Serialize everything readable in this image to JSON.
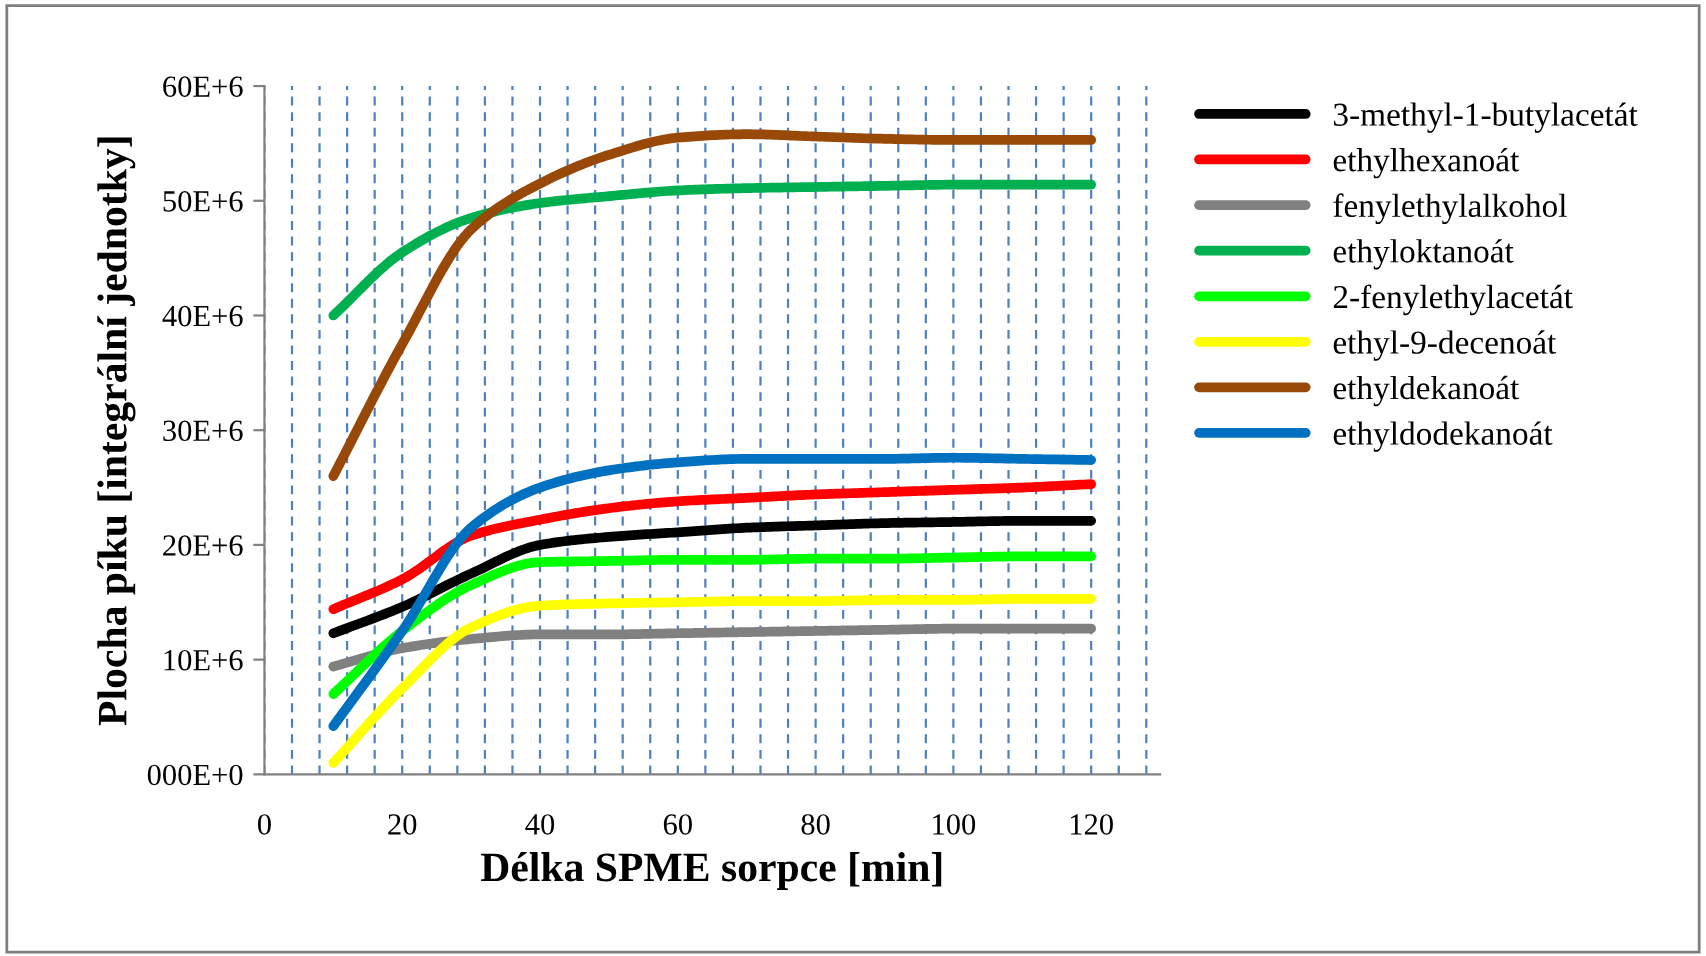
{
  "chart_data": {
    "type": "line",
    "xlabel": "Délka SPME sorpce [min]",
    "ylabel": "Plocha píku [integrální jednotky]",
    "x": [
      10,
      20,
      30,
      40,
      50,
      60,
      70,
      80,
      90,
      100,
      110,
      120
    ],
    "series": [
      {
        "name": "3-methyl-1-butylacetát",
        "color": "#000000",
        "values": [
          12300000,
          14600000,
          17500000,
          20000000,
          20700000,
          21100000,
          21500000,
          21700000,
          21900000,
          22000000,
          22100000,
          22100000
        ]
      },
      {
        "name": "ethylhexanoát",
        "color": "#ff0000",
        "values": [
          14400000,
          17000000,
          20800000,
          22200000,
          23200000,
          23800000,
          24100000,
          24400000,
          24600000,
          24800000,
          25000000,
          25300000
        ]
      },
      {
        "name": "fenylethylalkohol",
        "color": "#808080",
        "values": [
          9400000,
          11000000,
          11800000,
          12200000,
          12200000,
          12300000,
          12400000,
          12500000,
          12600000,
          12700000,
          12700000,
          12700000
        ]
      },
      {
        "name": "ethyloktanoát",
        "color": "#00b050",
        "values": [
          40000000,
          45500000,
          48500000,
          49800000,
          50400000,
          50900000,
          51100000,
          51200000,
          51300000,
          51400000,
          51400000,
          51400000
        ]
      },
      {
        "name": "2-fenylethylacetát",
        "color": "#00ff00",
        "values": [
          7000000,
          12500000,
          16500000,
          18500000,
          18600000,
          18700000,
          18700000,
          18800000,
          18800000,
          18900000,
          19000000,
          19000000
        ]
      },
      {
        "name": "ethyl-9-decenoát",
        "color": "#ffff00",
        "values": [
          1000000,
          7500000,
          12800000,
          14700000,
          14900000,
          15000000,
          15100000,
          15100000,
          15200000,
          15200000,
          15300000,
          15300000
        ]
      },
      {
        "name": "ethyldekanoát",
        "color": "#984807",
        "values": [
          26000000,
          37500000,
          47500000,
          51500000,
          54000000,
          55500000,
          55800000,
          55600000,
          55400000,
          55300000,
          55300000,
          55300000
        ]
      },
      {
        "name": "ethyldodekanoát",
        "color": "#0070c0",
        "values": [
          4200000,
          12500000,
          21500000,
          25000000,
          26500000,
          27200000,
          27500000,
          27500000,
          27500000,
          27600000,
          27500000,
          27400000
        ]
      }
    ],
    "xlim": [
      0,
      130
    ],
    "xticks": [
      0,
      {
        "value": 4,
        "label": null
      },
      {
        "value": 8,
        "label": null
      },
      {
        "value": 12,
        "label": null
      },
      {
        "value": 16,
        "label": null
      },
      20,
      {
        "value": 24,
        "label": null
      },
      {
        "value": 28,
        "label": null
      },
      {
        "value": 32,
        "label": null
      },
      {
        "value": 36,
        "label": null
      },
      40,
      {
        "value": 44,
        "label": null
      },
      {
        "value": 48,
        "label": null
      },
      {
        "value": 52,
        "label": null
      },
      {
        "value": 56,
        "label": null
      },
      60,
      {
        "value": 64,
        "label": null
      },
      {
        "value": 68,
        "label": null
      },
      {
        "value": 72,
        "label": null
      },
      {
        "value": 76,
        "label": null
      },
      80,
      {
        "value": 84,
        "label": null
      },
      {
        "value": 88,
        "label": null
      },
      {
        "value": 92,
        "label": null
      },
      {
        "value": 96,
        "label": null
      },
      100,
      {
        "value": 104,
        "label": null
      },
      {
        "value": 108,
        "label": null
      },
      {
        "value": 112,
        "label": null
      },
      {
        "value": 116,
        "label": null
      },
      120,
      {
        "value": 124,
        "label": null
      },
      {
        "value": 128,
        "label": null
      }
    ],
    "ylim": [
      0,
      60000000
    ],
    "yticks": [
      {
        "value": 0,
        "label": "000E+0"
      },
      {
        "value": 10000000,
        "label": "10E+6"
      },
      {
        "value": 20000000,
        "label": "20E+6"
      },
      {
        "value": 30000000,
        "label": "30E+6"
      },
      {
        "value": 40000000,
        "label": "40E+6"
      },
      {
        "value": 50000000,
        "label": "50E+6"
      },
      {
        "value": 60000000,
        "label": "60E+6"
      }
    ],
    "grid": "x",
    "legend": "right",
    "marker": "none",
    "line_style": "solid"
  }
}
